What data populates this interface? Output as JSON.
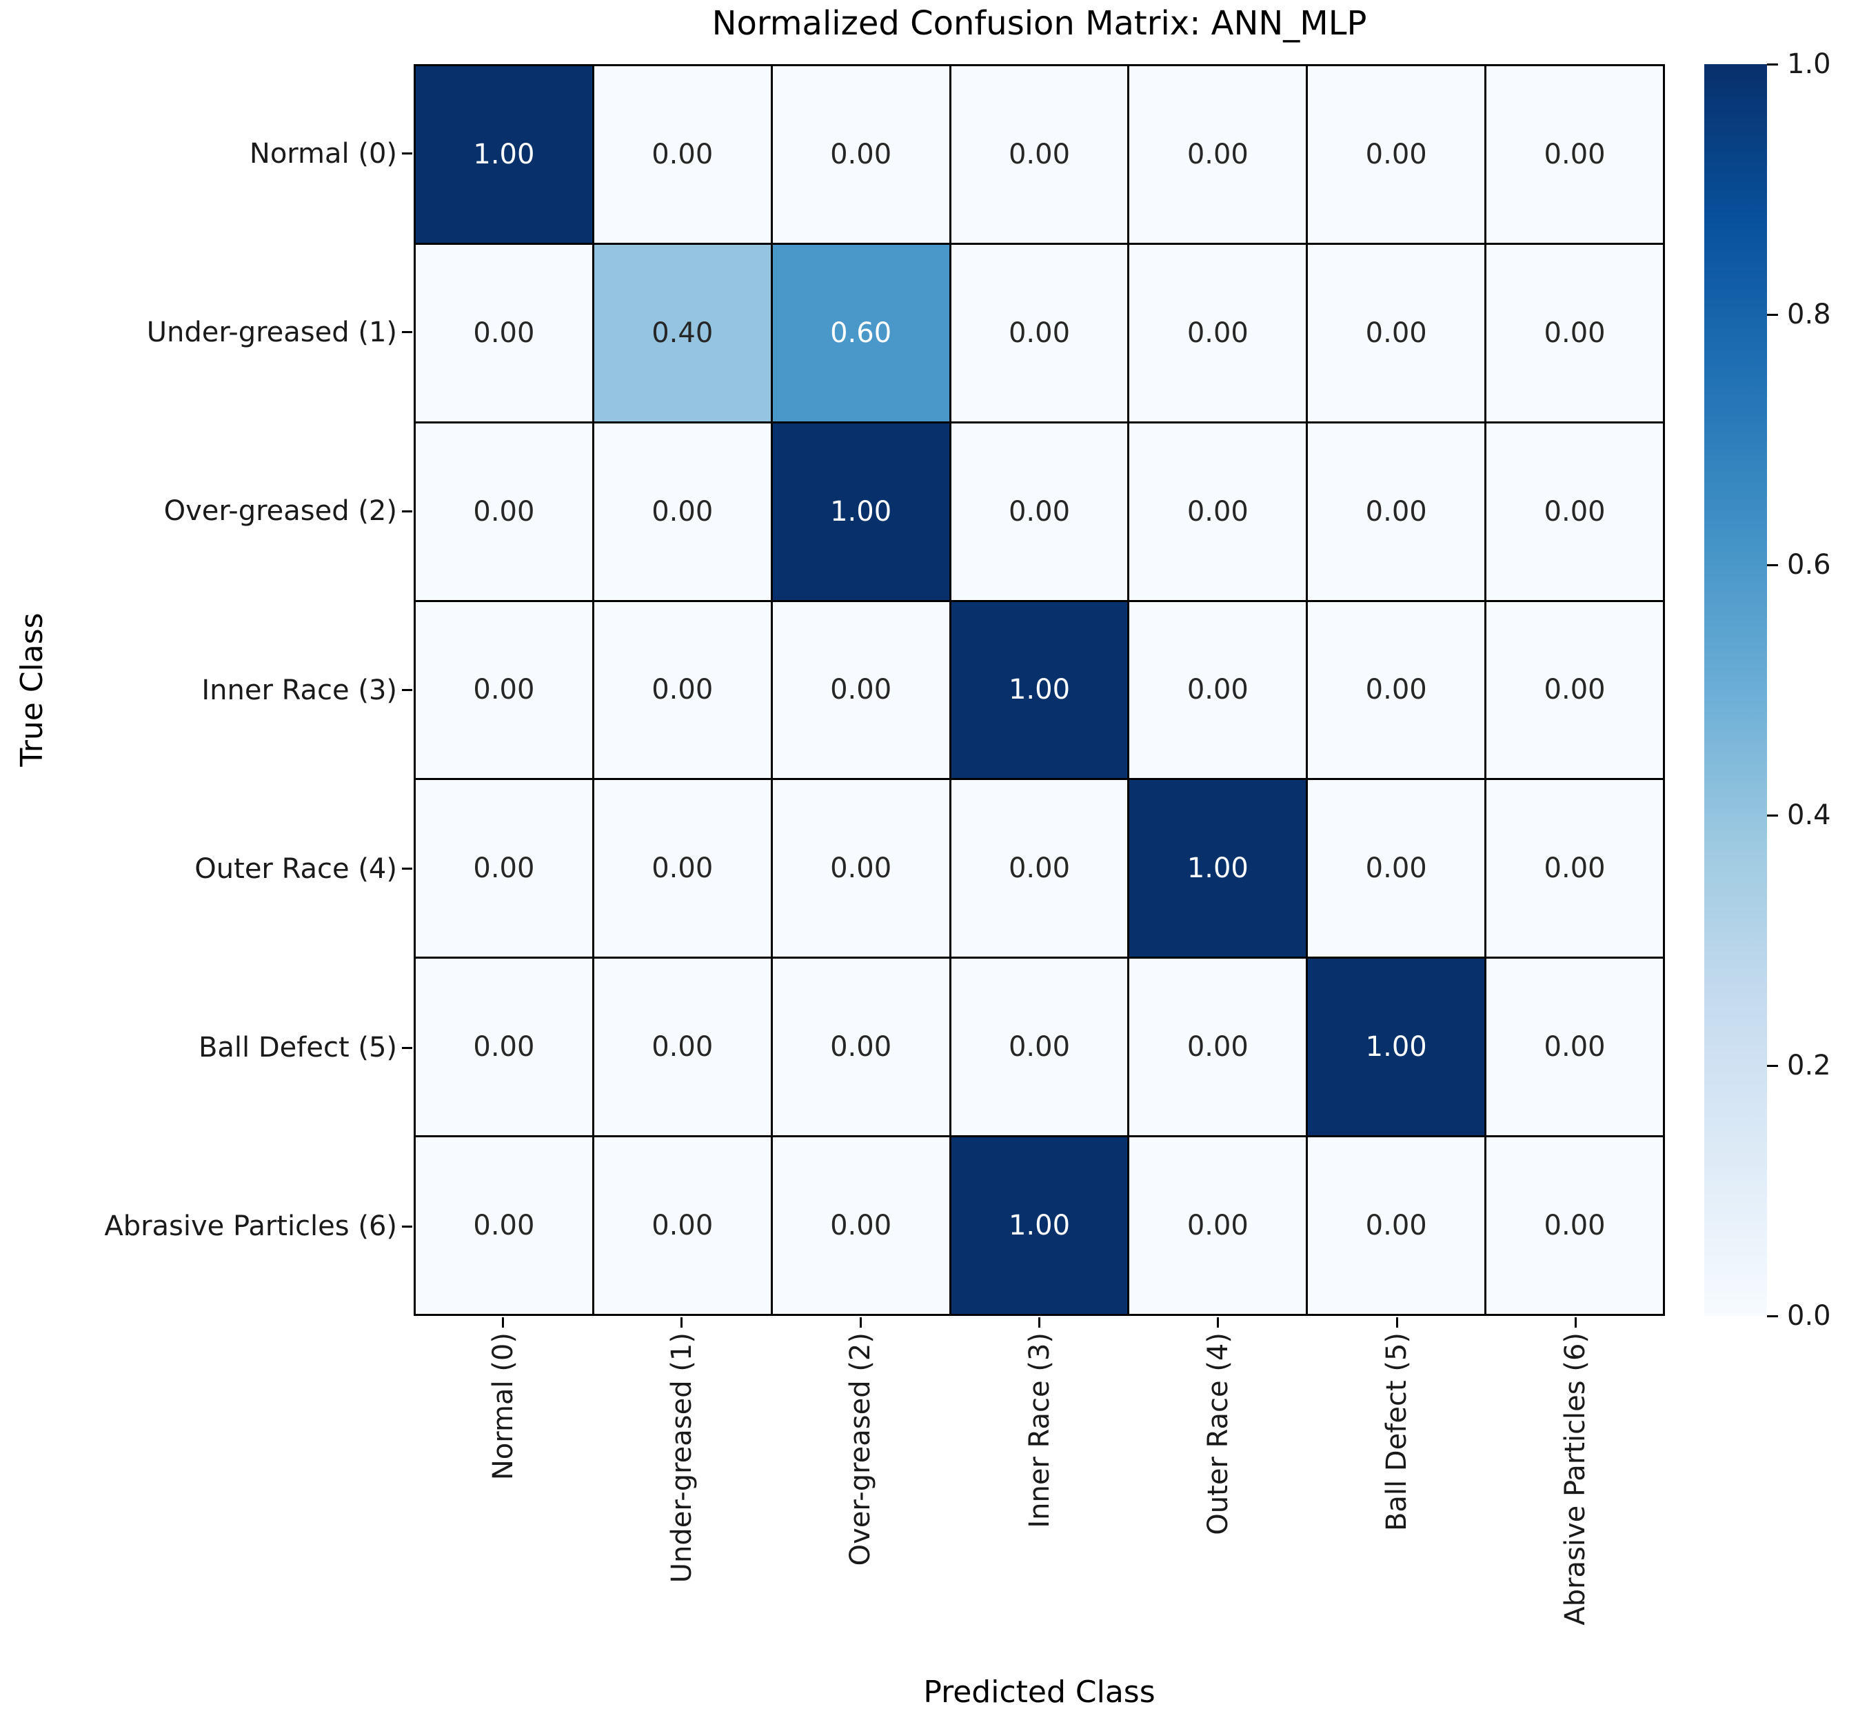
{
  "chart_data": {
    "type": "heatmap",
    "title": "Normalized Confusion Matrix: ANN_MLP",
    "xlabel": "Predicted Class",
    "ylabel": "True Class",
    "x_tick_labels": [
      "Normal (0)",
      "Under-greased (1)",
      "Over-greased (2)",
      "Inner Race (3)",
      "Outer Race (4)",
      "Ball Defect (5)",
      "Abrasive Particles (6)"
    ],
    "y_tick_labels": [
      "Normal (0)",
      "Under-greased (1)",
      "Over-greased (2)",
      "Inner Race (3)",
      "Outer Race (4)",
      "Ball Defect (5)",
      "Abrasive Particles (6)"
    ],
    "matrix": [
      [
        1.0,
        0.0,
        0.0,
        0.0,
        0.0,
        0.0,
        0.0
      ],
      [
        0.0,
        0.4,
        0.6,
        0.0,
        0.0,
        0.0,
        0.0
      ],
      [
        0.0,
        0.0,
        1.0,
        0.0,
        0.0,
        0.0,
        0.0
      ],
      [
        0.0,
        0.0,
        0.0,
        1.0,
        0.0,
        0.0,
        0.0
      ],
      [
        0.0,
        0.0,
        0.0,
        0.0,
        1.0,
        0.0,
        0.0
      ],
      [
        0.0,
        0.0,
        0.0,
        0.0,
        0.0,
        1.0,
        0.0
      ],
      [
        0.0,
        0.0,
        0.0,
        1.0,
        0.0,
        0.0,
        0.0
      ]
    ],
    "value_decimals": 2,
    "vmin": 0.0,
    "vmax": 1.0,
    "colorbar_ticks": [
      1.0,
      0.8,
      0.6,
      0.4,
      0.2,
      0.0
    ],
    "colormap_name": "Blues",
    "colormap_stops": [
      "#f7fbff",
      "#deebf7",
      "#c6dbef",
      "#9ecae1",
      "#6baed6",
      "#4292c6",
      "#2171b5",
      "#08519c",
      "#08306b"
    ],
    "annotation_colors": {
      "dark": "#262626",
      "light": "#ffffff"
    },
    "grid_line_color": "#000000",
    "legend_position": "right-colorbar",
    "grid": "on-cell-borders"
  }
}
